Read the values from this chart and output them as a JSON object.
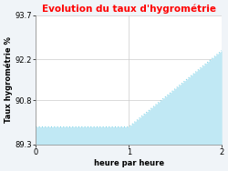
{
  "title": "Evolution du taux d'hygrométrie",
  "title_color": "#ff0000",
  "xlabel": "heure par heure",
  "ylabel": "Taux hygrométrie %",
  "x": [
    0,
    1,
    2
  ],
  "y": [
    89.9,
    89.9,
    92.5
  ],
  "ylim": [
    89.3,
    93.7
  ],
  "xlim": [
    0,
    2
  ],
  "yticks": [
    89.3,
    90.8,
    92.2,
    93.7
  ],
  "xticks": [
    0,
    1,
    2
  ],
  "line_color": "#7dd4e8",
  "fill_color": "#c0e8f4",
  "fill_alpha": 1.0,
  "background_color": "#f0f4f8",
  "axes_bg_color": "#ffffff",
  "grid_color": "#cccccc",
  "title_fontsize": 7.5,
  "label_fontsize": 6,
  "tick_fontsize": 6
}
